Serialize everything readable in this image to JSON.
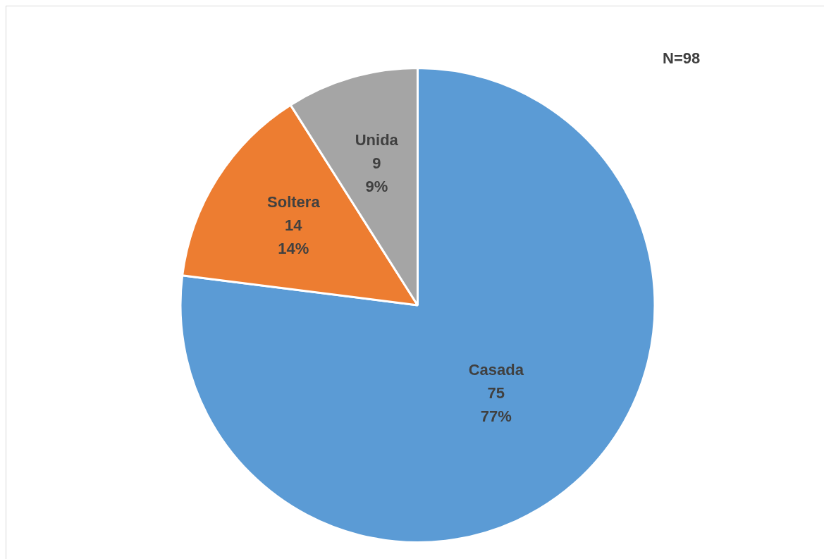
{
  "chart_data": {
    "type": "pie",
    "categories": [
      "Casada",
      "Soltera",
      "Unida"
    ],
    "values": [
      77,
      14,
      9
    ],
    "colors": [
      "#5b9bd5",
      "#ed7d31",
      "#a5a5a5"
    ],
    "value_labels": [
      "75\n77%",
      "14\n14%",
      "9\n9%"
    ],
    "annotations": [
      "N=98"
    ],
    "legend": false
  }
}
